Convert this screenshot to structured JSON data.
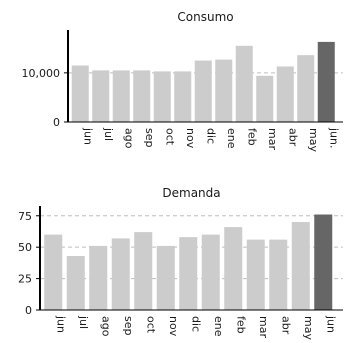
{
  "chart_data": [
    {
      "type": "bar",
      "title": "Consumo",
      "categories": [
        "jun",
        "jul",
        "ago",
        "sep",
        "oct",
        "nov",
        "dic",
        "ene",
        "feb",
        "mar",
        "abr",
        "may",
        "jun."
      ],
      "values": [
        11500,
        10500,
        10500,
        10500,
        10300,
        10300,
        12500,
        12700,
        15500,
        9400,
        11300,
        13600,
        16300
      ],
      "yticks": [
        "0",
        "10,000"
      ],
      "ytick_values": [
        0,
        10000
      ],
      "ylim": [
        0,
        17500
      ],
      "grid": "horizontal dashed",
      "colors": {
        "bar": "#cccccc",
        "highlight": "#666666",
        "grid": "#bdbdbd",
        "axis": "#000000"
      }
    },
    {
      "type": "bar",
      "title": "Demanda",
      "categories": [
        "jun",
        "jul",
        "ago",
        "sep",
        "oct",
        "nov",
        "dic",
        "ene",
        "feb",
        "mar",
        "abr",
        "may",
        "jun"
      ],
      "values": [
        60,
        43,
        51,
        57,
        62,
        51,
        58,
        60,
        66,
        56,
        56,
        70,
        76
      ],
      "yticks": [
        "0",
        "25",
        "50",
        "75"
      ],
      "ytick_values": [
        0,
        25,
        50,
        75
      ],
      "ylim": [
        0,
        78
      ],
      "grid": "horizontal dashed",
      "colors": {
        "bar": "#cccccc",
        "highlight": "#666666",
        "grid": "#bdbdbd",
        "axis": "#000000"
      }
    }
  ]
}
